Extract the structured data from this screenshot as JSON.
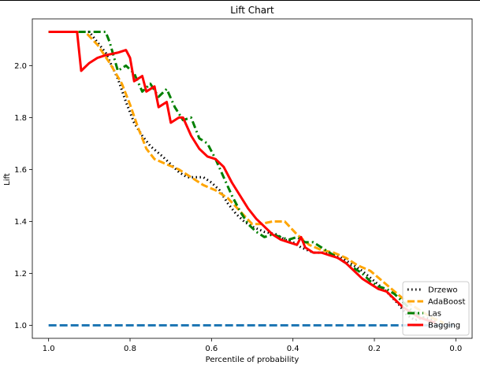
{
  "chart_data": {
    "type": "line",
    "title": "Lift Chart",
    "xlabel": "Percentile of probability",
    "ylabel": "Lift",
    "xlim": [
      1.04,
      -0.04
    ],
    "ylim": [
      0.95,
      2.18
    ],
    "x_ticks": [
      1.0,
      0.8,
      0.6,
      0.4,
      0.2,
      0.0
    ],
    "x_tick_labels": [
      "1.0",
      "0.8",
      "0.6",
      "0.4",
      "0.2",
      "0.0"
    ],
    "y_ticks": [
      1.0,
      1.2,
      1.4,
      1.6,
      1.8,
      2.0
    ],
    "y_tick_labels": [
      "1.0",
      "1.2",
      "1.4",
      "1.6",
      "1.8",
      "2.0"
    ],
    "grid": false,
    "legend_position": "bottom-right",
    "baseline": {
      "value": 1.0,
      "color": "#1f77b4",
      "style": "dashed"
    },
    "series": [
      {
        "name": "Drzewo",
        "color": "#000000",
        "style": "dotted",
        "points": [
          [
            1.0,
            2.13
          ],
          [
            0.9,
            2.13
          ],
          [
            0.86,
            2.05
          ],
          [
            0.83,
            1.95
          ],
          [
            0.81,
            1.86
          ],
          [
            0.79,
            1.78
          ],
          [
            0.77,
            1.73
          ],
          [
            0.75,
            1.69
          ],
          [
            0.72,
            1.65
          ],
          [
            0.7,
            1.62
          ],
          [
            0.68,
            1.59
          ],
          [
            0.66,
            1.57
          ],
          [
            0.62,
            1.57
          ],
          [
            0.6,
            1.55
          ],
          [
            0.58,
            1.52
          ],
          [
            0.56,
            1.47
          ],
          [
            0.54,
            1.43
          ],
          [
            0.52,
            1.4
          ],
          [
            0.5,
            1.38
          ],
          [
            0.47,
            1.36
          ],
          [
            0.44,
            1.35
          ],
          [
            0.42,
            1.33
          ],
          [
            0.4,
            1.32
          ],
          [
            0.38,
            1.3
          ],
          [
            0.35,
            1.28
          ],
          [
            0.32,
            1.28
          ],
          [
            0.29,
            1.27
          ],
          [
            0.26,
            1.24
          ],
          [
            0.23,
            1.21
          ],
          [
            0.2,
            1.17
          ],
          [
            0.17,
            1.13
          ],
          [
            0.14,
            1.08
          ],
          [
            0.12,
            1.04
          ],
          [
            0.1,
            1.02
          ],
          [
            0.08,
            1.03
          ],
          [
            0.05,
            1.02
          ]
        ]
      },
      {
        "name": "AdaBoost",
        "color": "#ffa500",
        "style": "dashed",
        "points": [
          [
            1.0,
            2.13
          ],
          [
            0.91,
            2.13
          ],
          [
            0.88,
            2.08
          ],
          [
            0.85,
            2.01
          ],
          [
            0.82,
            1.93
          ],
          [
            0.8,
            1.85
          ],
          [
            0.78,
            1.76
          ],
          [
            0.76,
            1.68
          ],
          [
            0.74,
            1.64
          ],
          [
            0.71,
            1.62
          ],
          [
            0.68,
            1.6
          ],
          [
            0.65,
            1.57
          ],
          [
            0.62,
            1.54
          ],
          [
            0.59,
            1.52
          ],
          [
            0.56,
            1.49
          ],
          [
            0.53,
            1.44
          ],
          [
            0.5,
            1.39
          ],
          [
            0.48,
            1.39
          ],
          [
            0.45,
            1.4
          ],
          [
            0.42,
            1.4
          ],
          [
            0.39,
            1.35
          ],
          [
            0.36,
            1.31
          ],
          [
            0.33,
            1.29
          ],
          [
            0.3,
            1.28
          ],
          [
            0.27,
            1.26
          ],
          [
            0.24,
            1.23
          ],
          [
            0.21,
            1.21
          ],
          [
            0.18,
            1.17
          ],
          [
            0.15,
            1.13
          ],
          [
            0.12,
            1.09
          ],
          [
            0.09,
            1.06
          ],
          [
            0.06,
            1.03
          ],
          [
            0.03,
            1.01
          ]
        ]
      },
      {
        "name": "Las",
        "color": "#008000",
        "style": "dashdot",
        "points": [
          [
            1.0,
            2.13
          ],
          [
            0.88,
            2.13
          ],
          [
            0.86,
            2.13
          ],
          [
            0.85,
            2.09
          ],
          [
            0.83,
            1.98
          ],
          [
            0.81,
            2.0
          ],
          [
            0.79,
            1.97
          ],
          [
            0.77,
            1.9
          ],
          [
            0.75,
            1.93
          ],
          [
            0.73,
            1.88
          ],
          [
            0.71,
            1.91
          ],
          [
            0.69,
            1.84
          ],
          [
            0.67,
            1.79
          ],
          [
            0.65,
            1.8
          ],
          [
            0.63,
            1.72
          ],
          [
            0.61,
            1.7
          ],
          [
            0.59,
            1.64
          ],
          [
            0.57,
            1.57
          ],
          [
            0.55,
            1.5
          ],
          [
            0.53,
            1.44
          ],
          [
            0.51,
            1.39
          ],
          [
            0.49,
            1.36
          ],
          [
            0.47,
            1.34
          ],
          [
            0.45,
            1.35
          ],
          [
            0.43,
            1.34
          ],
          [
            0.41,
            1.33
          ],
          [
            0.39,
            1.34
          ],
          [
            0.37,
            1.32
          ],
          [
            0.35,
            1.32
          ],
          [
            0.33,
            1.3
          ],
          [
            0.31,
            1.28
          ],
          [
            0.29,
            1.26
          ],
          [
            0.27,
            1.24
          ],
          [
            0.25,
            1.22
          ],
          [
            0.23,
            1.2
          ],
          [
            0.21,
            1.17
          ],
          [
            0.19,
            1.15
          ],
          [
            0.17,
            1.14
          ],
          [
            0.15,
            1.12
          ],
          [
            0.13,
            1.09
          ],
          [
            0.11,
            1.06
          ],
          [
            0.09,
            1.04
          ],
          [
            0.07,
            1.02
          ],
          [
            0.05,
            1.01
          ]
        ]
      },
      {
        "name": "Bagging",
        "color": "#ff0000",
        "style": "solid",
        "points": [
          [
            1.0,
            2.13
          ],
          [
            0.93,
            2.13
          ],
          [
            0.92,
            1.98
          ],
          [
            0.9,
            2.01
          ],
          [
            0.88,
            2.03
          ],
          [
            0.86,
            2.04
          ],
          [
            0.83,
            2.05
          ],
          [
            0.81,
            2.06
          ],
          [
            0.8,
            2.03
          ],
          [
            0.79,
            1.94
          ],
          [
            0.77,
            1.96
          ],
          [
            0.76,
            1.9
          ],
          [
            0.74,
            1.92
          ],
          [
            0.73,
            1.84
          ],
          [
            0.71,
            1.86
          ],
          [
            0.7,
            1.78
          ],
          [
            0.68,
            1.8
          ],
          [
            0.67,
            1.8
          ],
          [
            0.65,
            1.73
          ],
          [
            0.63,
            1.68
          ],
          [
            0.61,
            1.65
          ],
          [
            0.59,
            1.64
          ],
          [
            0.57,
            1.61
          ],
          [
            0.55,
            1.55
          ],
          [
            0.53,
            1.5
          ],
          [
            0.51,
            1.45
          ],
          [
            0.49,
            1.41
          ],
          [
            0.47,
            1.38
          ],
          [
            0.45,
            1.35
          ],
          [
            0.43,
            1.33
          ],
          [
            0.41,
            1.32
          ],
          [
            0.39,
            1.31
          ],
          [
            0.38,
            1.34
          ],
          [
            0.37,
            1.3
          ],
          [
            0.35,
            1.28
          ],
          [
            0.33,
            1.28
          ],
          [
            0.31,
            1.27
          ],
          [
            0.29,
            1.26
          ],
          [
            0.27,
            1.24
          ],
          [
            0.25,
            1.21
          ],
          [
            0.23,
            1.18
          ],
          [
            0.21,
            1.16
          ],
          [
            0.19,
            1.14
          ],
          [
            0.17,
            1.13
          ],
          [
            0.15,
            1.1
          ],
          [
            0.13,
            1.07
          ],
          [
            0.11,
            1.05
          ],
          [
            0.09,
            1.03
          ],
          [
            0.07,
            1.02
          ],
          [
            0.05,
            1.01
          ]
        ]
      }
    ]
  }
}
